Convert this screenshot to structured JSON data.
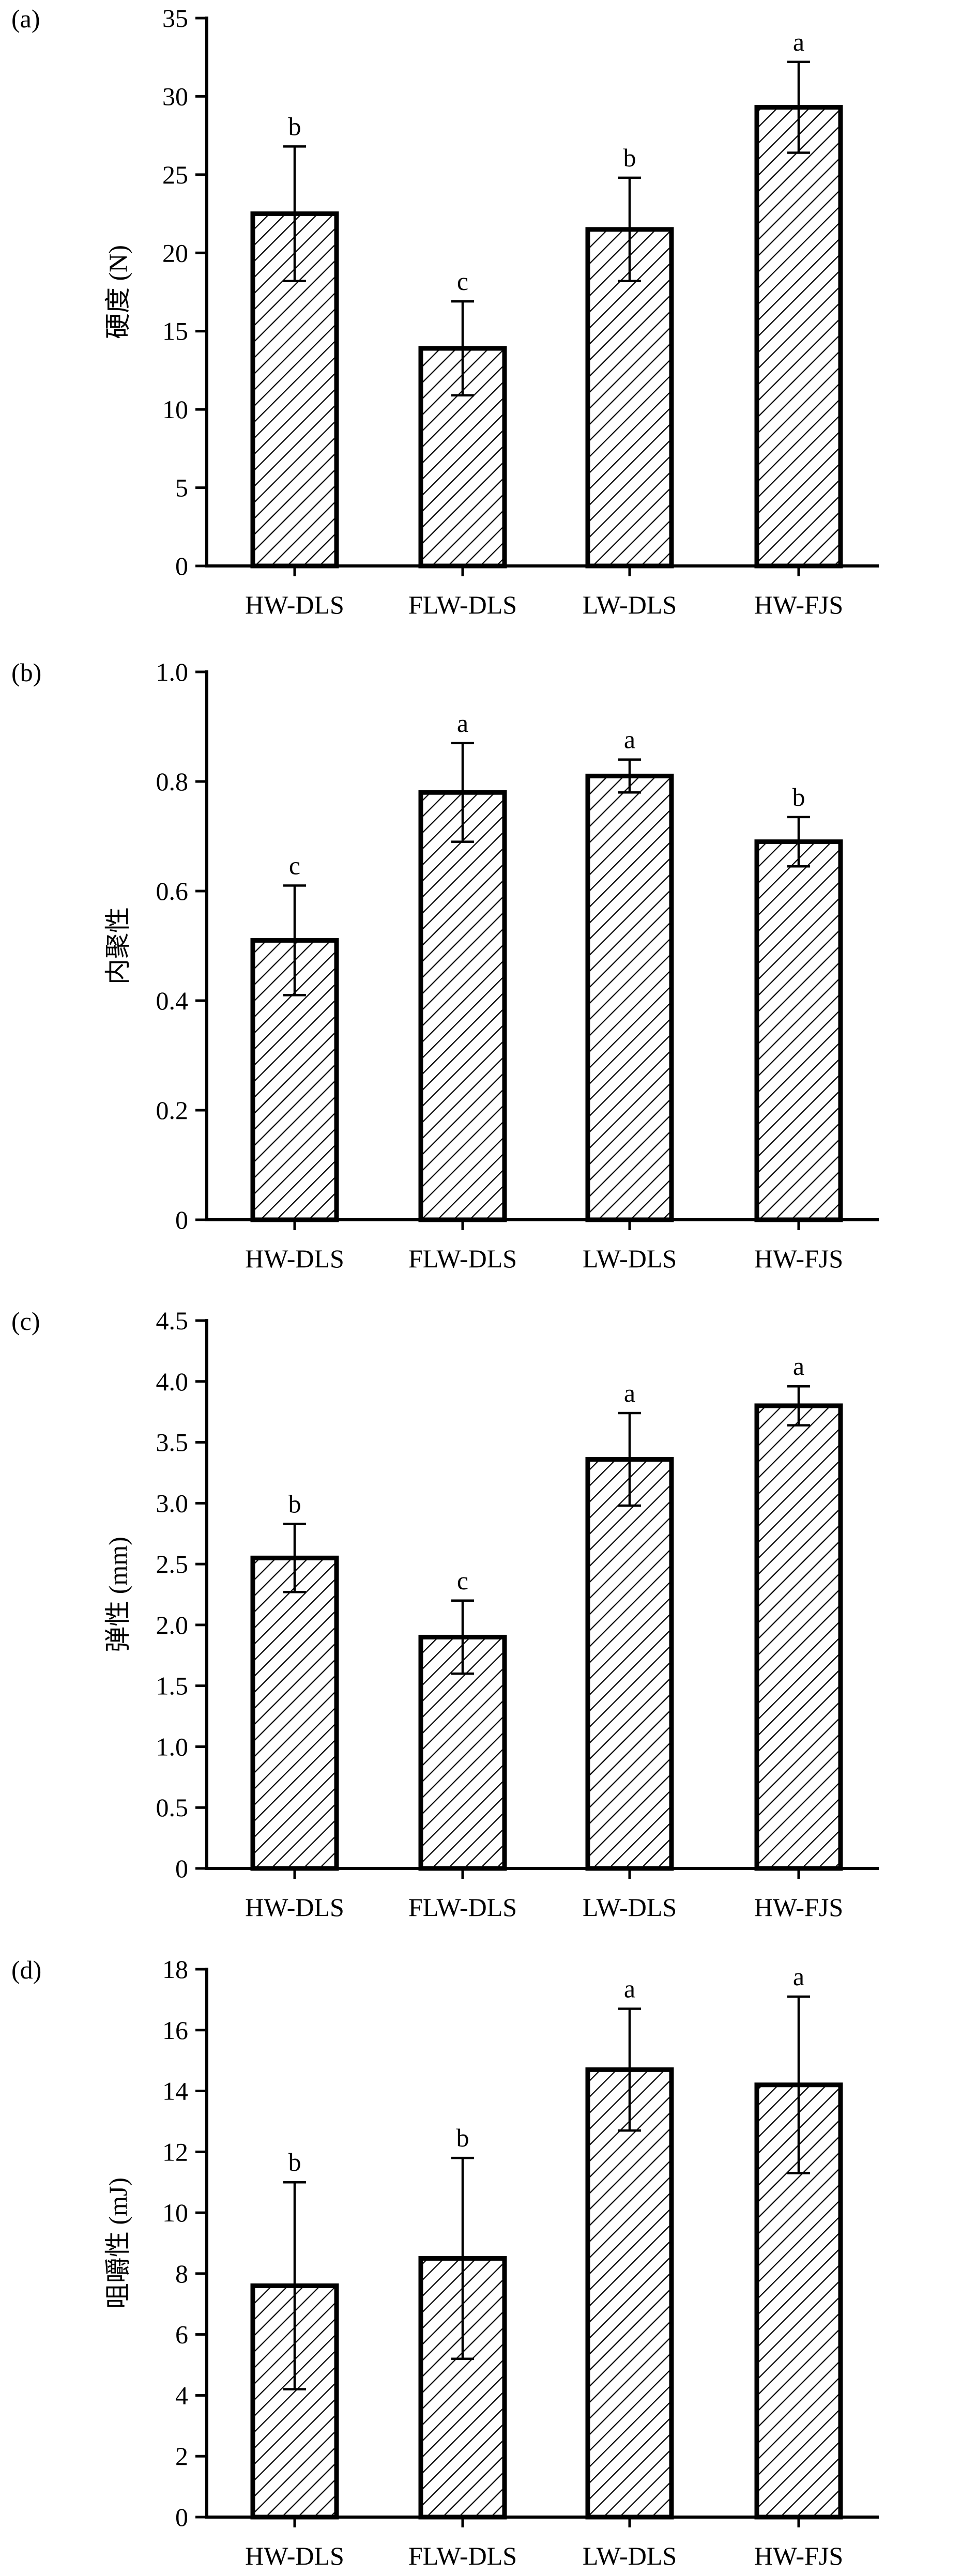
{
  "chart_data": [
    {
      "type": "bar",
      "panel": "(a)",
      "ylabel": "硬度 (N)",
      "categories": [
        "HW-DLS",
        "FLW-DLS",
        "LW-DLS",
        "HW-FJS"
      ],
      "values": [
        22.5,
        13.9,
        21.5,
        29.3
      ],
      "errors": [
        4.3,
        3.0,
        3.3,
        2.9
      ],
      "letters": [
        "b",
        "c",
        "b",
        "a"
      ],
      "ylim": [
        0,
        35
      ],
      "yticks": [
        "0",
        "5",
        "10",
        "15",
        "20",
        "25",
        "30",
        "35"
      ],
      "grid": false,
      "fill": "diagonal hatch"
    },
    {
      "type": "bar",
      "panel": "(b)",
      "ylabel": "内聚性",
      "categories": [
        "HW-DLS",
        "FLW-DLS",
        "LW-DLS",
        "HW-FJS"
      ],
      "values": [
        0.51,
        0.78,
        0.81,
        0.69
      ],
      "errors": [
        0.1,
        0.09,
        0.03,
        0.045
      ],
      "letters": [
        "c",
        "a",
        "a",
        "b"
      ],
      "ylim": [
        0,
        1.0
      ],
      "yticks": [
        "0",
        "0.2",
        "0.4",
        "0.6",
        "0.8",
        "1.0"
      ],
      "grid": false,
      "fill": "diagonal hatch"
    },
    {
      "type": "bar",
      "panel": "(c)",
      "ylabel": "弹性 (mm)",
      "categories": [
        "HW-DLS",
        "FLW-DLS",
        "LW-DLS",
        "HW-FJS"
      ],
      "values": [
        2.55,
        1.9,
        3.36,
        3.8
      ],
      "errors": [
        0.28,
        0.3,
        0.38,
        0.16
      ],
      "letters": [
        "b",
        "c",
        "a",
        "a"
      ],
      "ylim": [
        0,
        4.5
      ],
      "yticks": [
        "0",
        "0.5",
        "1.0",
        "1.5",
        "2.0",
        "2.5",
        "3.0",
        "3.5",
        "4.0",
        "4.5"
      ],
      "grid": false,
      "fill": "diagonal hatch"
    },
    {
      "type": "bar",
      "panel": "(d)",
      "ylabel": "咀嚼性 (mJ)",
      "categories": [
        "HW-DLS",
        "FLW-DLS",
        "LW-DLS",
        "HW-FJS"
      ],
      "values": [
        7.6,
        8.5,
        14.7,
        14.2
      ],
      "errors": [
        3.4,
        3.3,
        2.0,
        2.9
      ],
      "letters": [
        "b",
        "b",
        "a",
        "a"
      ],
      "ylim": [
        0,
        18
      ],
      "yticks": [
        "0",
        "2",
        "4",
        "6",
        "8",
        "10",
        "12",
        "14",
        "16",
        "18"
      ],
      "grid": false,
      "fill": "diagonal hatch"
    }
  ]
}
